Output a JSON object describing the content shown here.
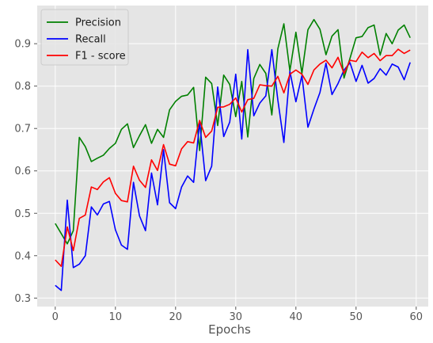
{
  "chart_data": {
    "type": "line",
    "title": "",
    "xlabel": "Epochs",
    "ylabel": "",
    "xlim": [
      -3,
      62
    ],
    "ylim": [
      0.28,
      0.99
    ],
    "xticks": [
      0,
      10,
      20,
      30,
      40,
      50,
      60
    ],
    "yticks": [
      0.3,
      0.4,
      0.5,
      0.6,
      0.7,
      0.8,
      0.9
    ],
    "grid": true,
    "legend_position": "top-left",
    "x": [
      0,
      1,
      2,
      3,
      4,
      5,
      6,
      7,
      8,
      9,
      10,
      11,
      12,
      13,
      14,
      15,
      16,
      17,
      18,
      19,
      20,
      21,
      22,
      23,
      24,
      25,
      26,
      27,
      28,
      29,
      30,
      31,
      32,
      33,
      34,
      35,
      36,
      37,
      38,
      39,
      40,
      41,
      42,
      43,
      44,
      45,
      46,
      47,
      48,
      49,
      50,
      51,
      52,
      53,
      54,
      55,
      56,
      57,
      58,
      59
    ],
    "series": [
      {
        "name": "Precision",
        "color": "#008000",
        "values": [
          0.476,
          0.452,
          0.428,
          0.459,
          0.679,
          0.657,
          0.622,
          0.63,
          0.637,
          0.653,
          0.665,
          0.698,
          0.711,
          0.655,
          0.683,
          0.709,
          0.665,
          0.698,
          0.679,
          0.744,
          0.764,
          0.776,
          0.779,
          0.797,
          0.648,
          0.821,
          0.806,
          0.707,
          0.826,
          0.804,
          0.728,
          0.811,
          0.68,
          0.818,
          0.851,
          0.83,
          0.732,
          0.888,
          0.947,
          0.836,
          0.927,
          0.83,
          0.933,
          0.957,
          0.934,
          0.874,
          0.918,
          0.933,
          0.819,
          0.866,
          0.914,
          0.917,
          0.938,
          0.944,
          0.873,
          0.924,
          0.9,
          0.932,
          0.944,
          0.914
        ]
      },
      {
        "name": "Recall",
        "color": "#0000ff",
        "values": [
          0.33,
          0.318,
          0.531,
          0.372,
          0.38,
          0.4,
          0.515,
          0.496,
          0.522,
          0.528,
          0.461,
          0.425,
          0.415,
          0.573,
          0.494,
          0.459,
          0.595,
          0.52,
          0.65,
          0.525,
          0.511,
          0.562,
          0.588,
          0.573,
          0.715,
          0.577,
          0.611,
          0.798,
          0.681,
          0.715,
          0.828,
          0.675,
          0.886,
          0.73,
          0.76,
          0.777,
          0.886,
          0.767,
          0.667,
          0.835,
          0.763,
          0.825,
          0.703,
          0.746,
          0.785,
          0.854,
          0.78,
          0.806,
          0.838,
          0.855,
          0.811,
          0.849,
          0.807,
          0.818,
          0.841,
          0.826,
          0.852,
          0.845,
          0.815,
          0.856
        ]
      },
      {
        "name": "F1 - score",
        "color": "#ff0000",
        "values": [
          0.39,
          0.375,
          0.468,
          0.412,
          0.488,
          0.496,
          0.562,
          0.556,
          0.574,
          0.584,
          0.547,
          0.53,
          0.527,
          0.611,
          0.578,
          0.561,
          0.626,
          0.601,
          0.662,
          0.616,
          0.612,
          0.652,
          0.669,
          0.666,
          0.719,
          0.679,
          0.694,
          0.75,
          0.751,
          0.757,
          0.772,
          0.739,
          0.768,
          0.771,
          0.803,
          0.801,
          0.8,
          0.823,
          0.784,
          0.828,
          0.838,
          0.828,
          0.804,
          0.838,
          0.852,
          0.861,
          0.843,
          0.868,
          0.83,
          0.861,
          0.858,
          0.88,
          0.867,
          0.877,
          0.86,
          0.872,
          0.872,
          0.887,
          0.877,
          0.885
        ]
      }
    ]
  }
}
